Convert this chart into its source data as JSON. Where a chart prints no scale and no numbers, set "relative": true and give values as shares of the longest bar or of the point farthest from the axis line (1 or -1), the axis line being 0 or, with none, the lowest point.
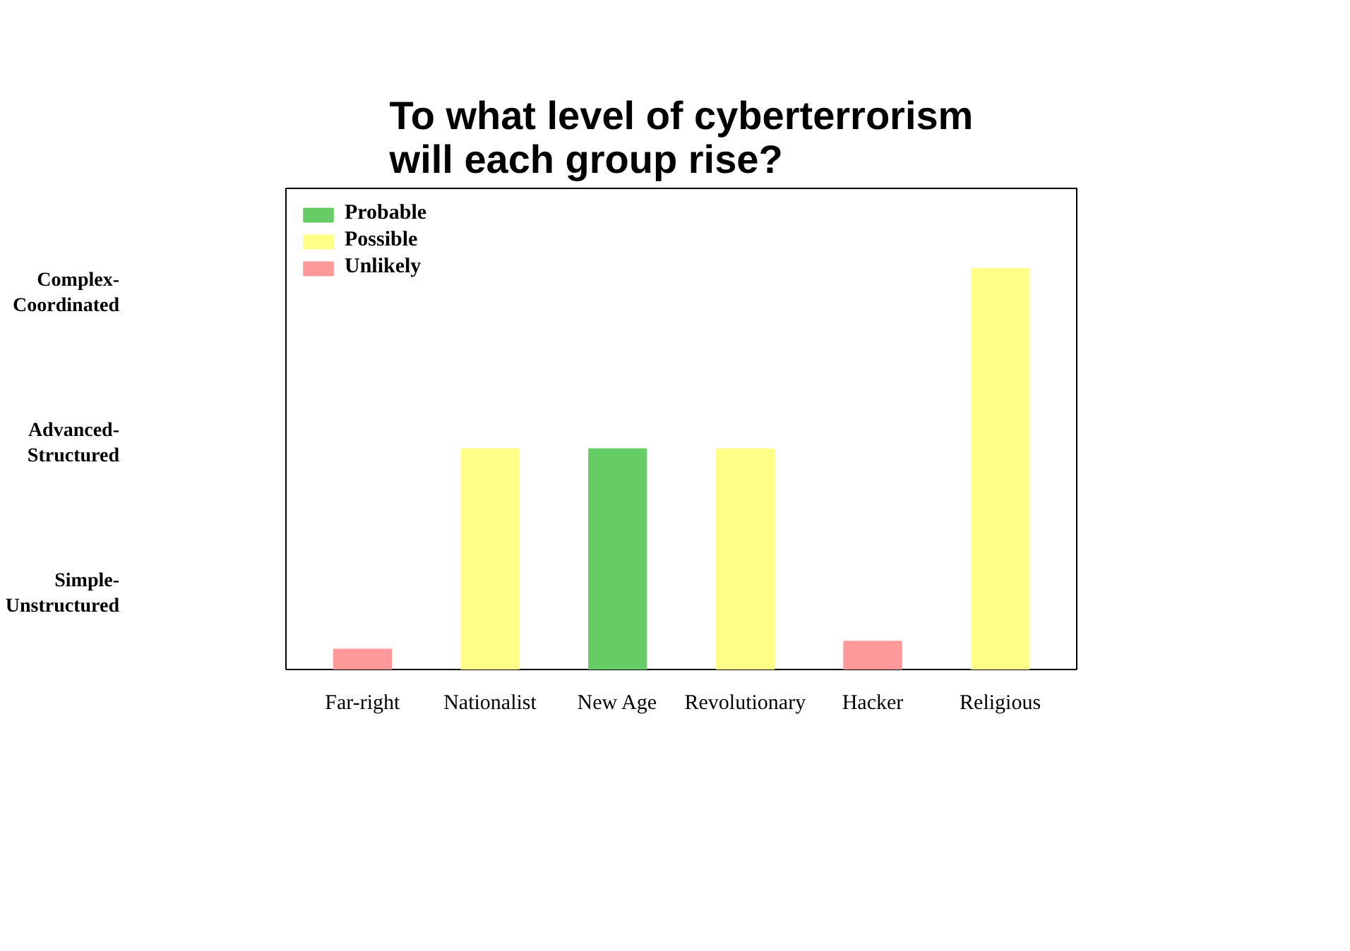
{
  "chart_data": {
    "type": "bar",
    "title": "To what level of cyberterrorism will each group rise?",
    "categories": [
      "Far-right",
      "Nationalist",
      "New Age",
      "Revolutionary",
      "Hacker",
      "Religious"
    ],
    "relative": true,
    "series": [
      {
        "name": "Probable",
        "color": "#66cc66",
        "values": [
          null,
          null,
          0.55,
          null,
          null,
          null
        ]
      },
      {
        "name": "Possible",
        "color": "#ffff88",
        "values": [
          null,
          0.55,
          null,
          0.55,
          null,
          1
        ]
      },
      {
        "name": "Unlikely",
        "color": "#ff9999",
        "values": [
          0.05,
          null,
          null,
          null,
          0.07,
          null
        ]
      }
    ],
    "annotations": [
      "Simple-Unstructured",
      "Advanced-Structured",
      "Complex-Coordinated"
    ],
    "grid": false,
    "legend": "top left"
  }
}
